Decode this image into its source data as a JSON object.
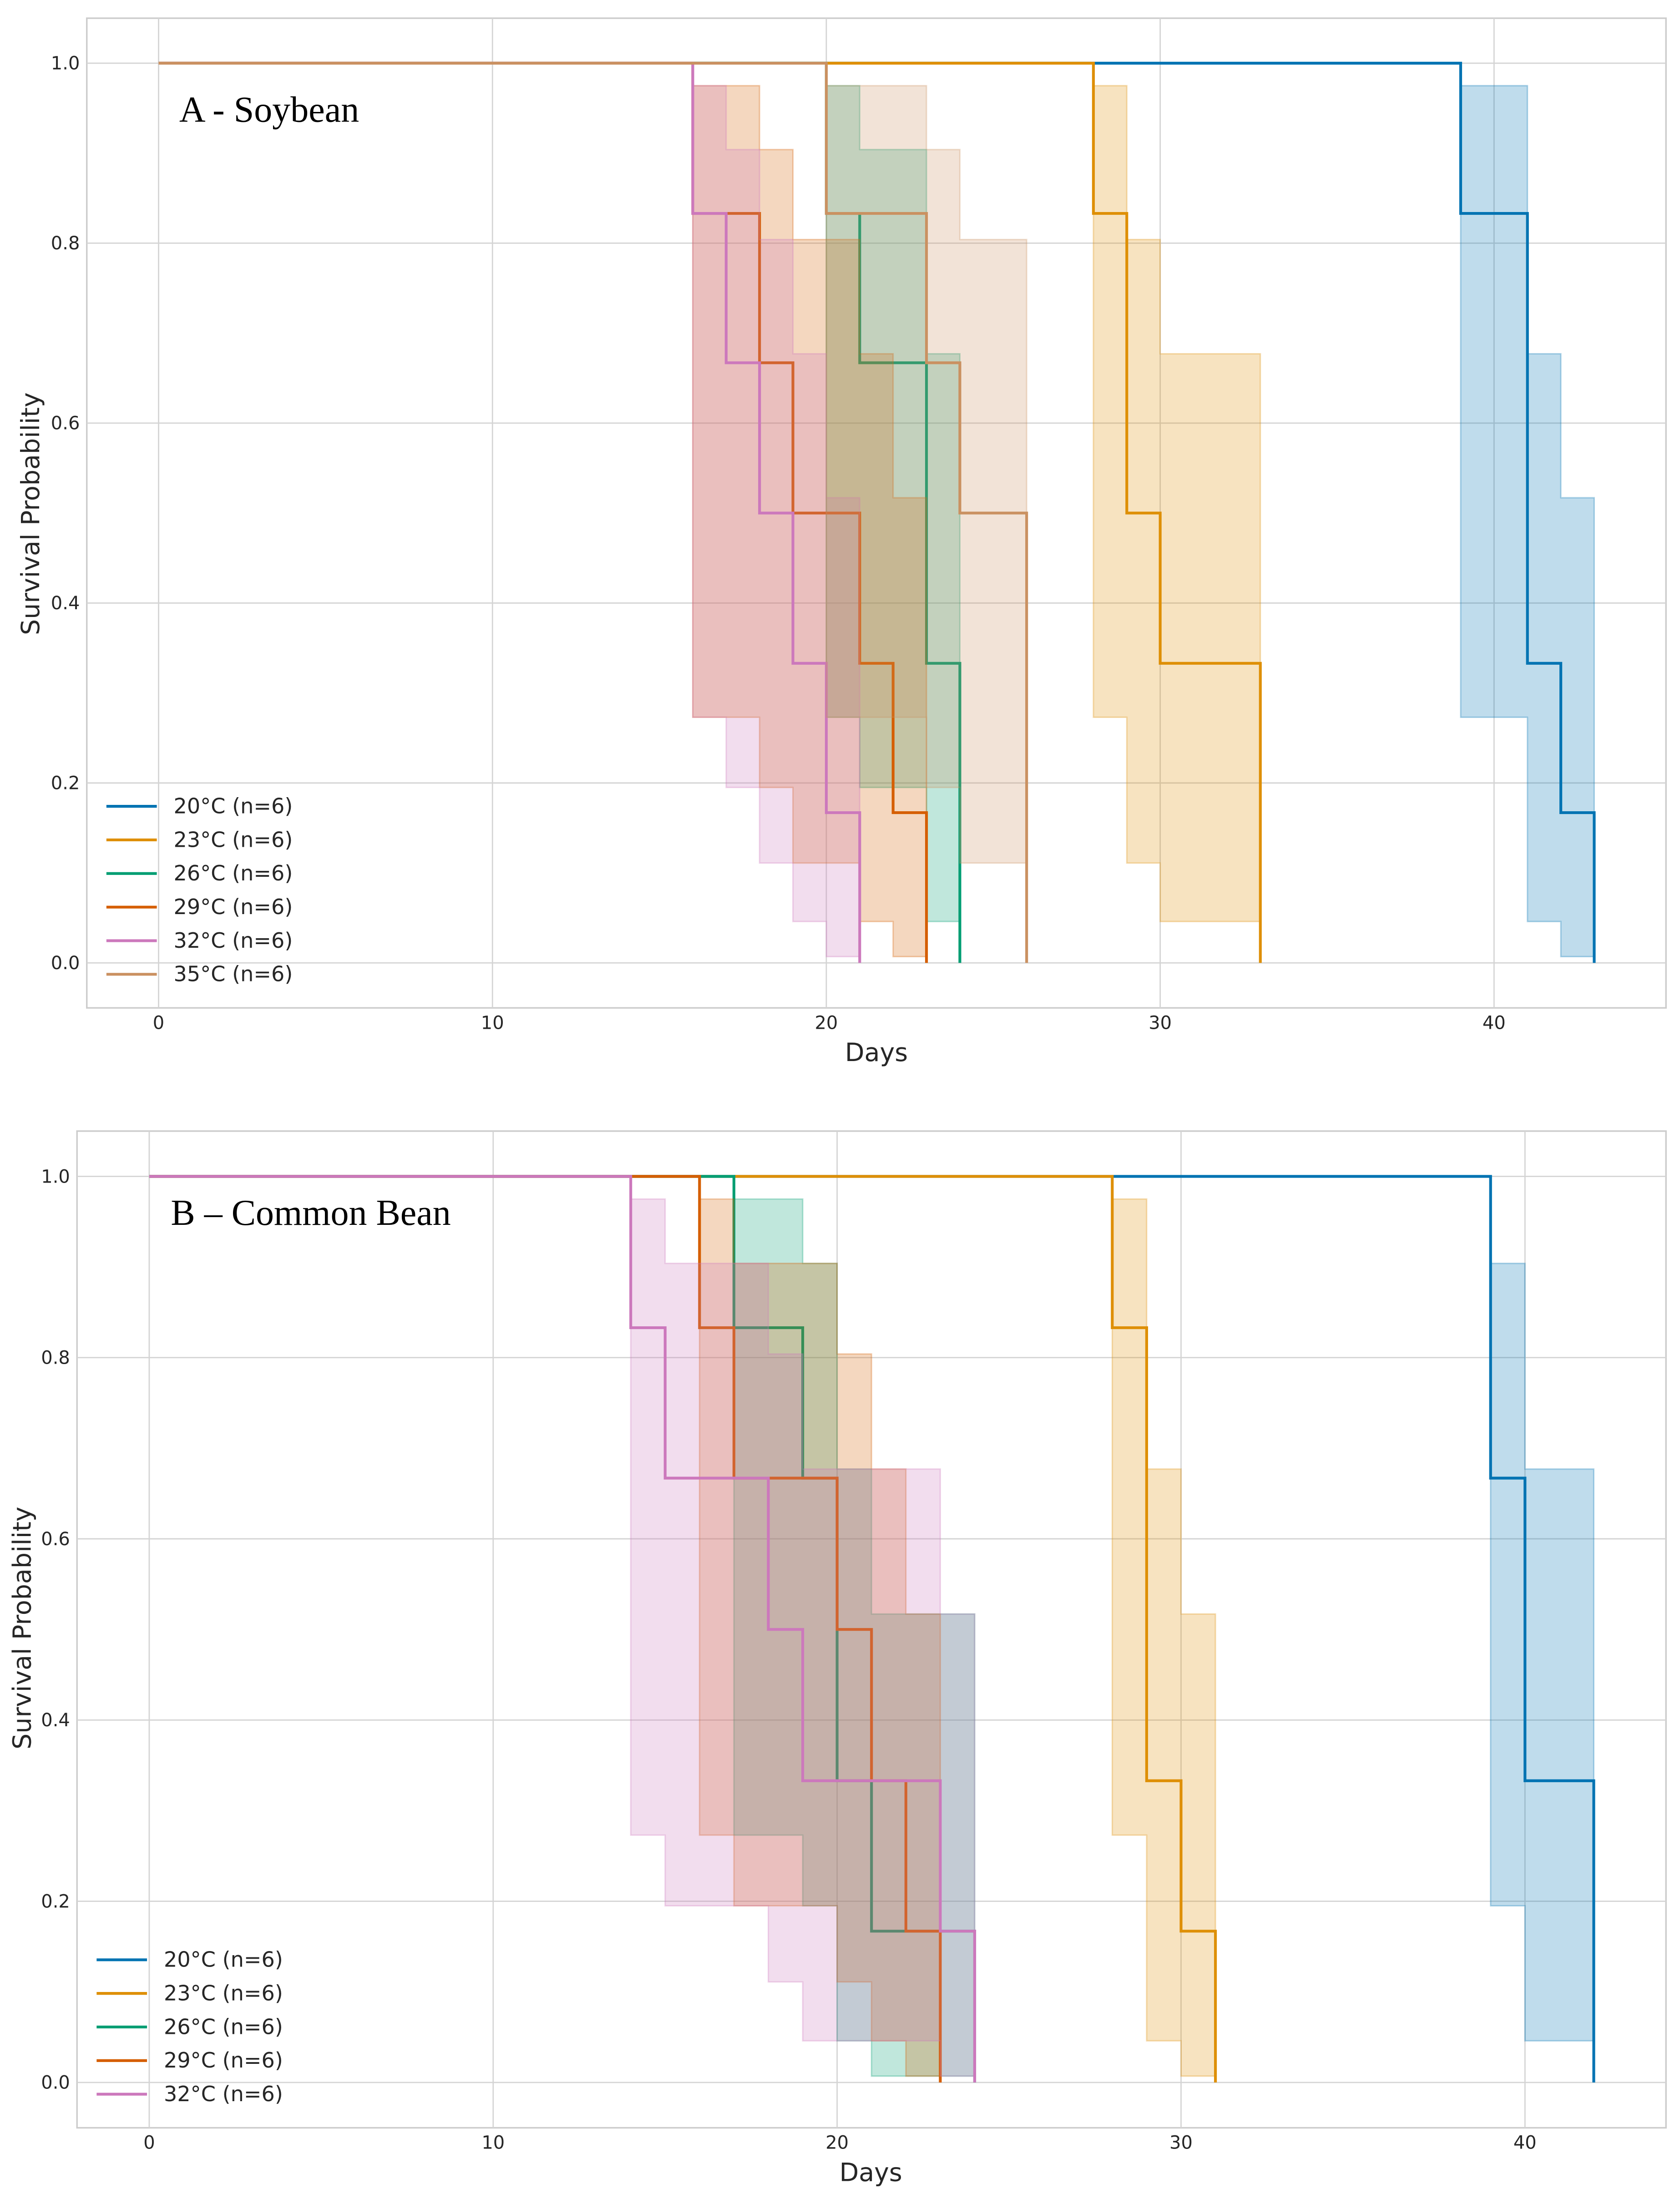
{
  "chart_data": [
    {
      "type": "line",
      "title": "A - Soybean",
      "xlabel": "Days",
      "ylabel": "Survival Probability",
      "xlim": [
        -2.15,
        45.15
      ],
      "ylim": [
        -0.05,
        1.05
      ],
      "xticks": [
        0,
        10,
        20,
        30,
        40
      ],
      "xtick_labels": [
        "0",
        "10",
        "20",
        "30",
        "40"
      ],
      "yticks": [
        0.0,
        0.2,
        0.4,
        0.6,
        0.8,
        1.0
      ],
      "ytick_labels": [
        "0.0",
        "0.2",
        "0.4",
        "0.6",
        "0.8",
        "1.0"
      ],
      "grid": true,
      "legend_position": "lower-left",
      "series": [
        {
          "name": "20°C (n=6)",
          "color": "#0173B2",
          "times": [
            0,
            39,
            41,
            42,
            43
          ],
          "survival": [
            1.0,
            0.833,
            0.333,
            0.167,
            0.0
          ],
          "ci_lower": [
            1.0,
            0.273,
            0.046,
            0.007,
            null
          ],
          "ci_upper": [
            1.0,
            0.975,
            0.677,
            0.517,
            null
          ]
        },
        {
          "name": "23°C (n=6)",
          "color": "#DE8F05",
          "times": [
            0,
            28,
            29,
            30,
            33
          ],
          "survival": [
            1.0,
            0.833,
            0.5,
            0.333,
            0.0
          ],
          "ci_lower": [
            1.0,
            0.273,
            0.111,
            0.046,
            null
          ],
          "ci_upper": [
            1.0,
            0.975,
            0.804,
            0.677,
            null
          ]
        },
        {
          "name": "26°C (n=6)",
          "color": "#029E73",
          "times": [
            0,
            20,
            21,
            23,
            24
          ],
          "survival": [
            1.0,
            0.833,
            0.667,
            0.333,
            0.0
          ],
          "ci_lower": [
            1.0,
            0.273,
            0.195,
            0.046,
            null
          ],
          "ci_upper": [
            1.0,
            0.975,
            0.904,
            0.677,
            null
          ]
        },
        {
          "name": "29°C (n=6)",
          "color": "#D55E00",
          "times": [
            0,
            16,
            18,
            19,
            21,
            22,
            23
          ],
          "survival": [
            1.0,
            0.833,
            0.667,
            0.5,
            0.333,
            0.167,
            0.0
          ],
          "ci_lower": [
            1.0,
            0.273,
            0.195,
            0.111,
            0.046,
            0.007,
            null
          ],
          "ci_upper": [
            1.0,
            0.975,
            0.904,
            0.804,
            0.677,
            0.517,
            null
          ]
        },
        {
          "name": "32°C (n=6)",
          "color": "#CC78BC",
          "times": [
            0,
            16,
            17,
            18,
            19,
            20,
            21
          ],
          "survival": [
            1.0,
            0.833,
            0.667,
            0.5,
            0.333,
            0.167,
            0.0
          ],
          "ci_lower": [
            1.0,
            0.273,
            0.195,
            0.111,
            0.046,
            0.007,
            null
          ],
          "ci_upper": [
            1.0,
            0.975,
            0.904,
            0.804,
            0.677,
            0.517,
            null
          ]
        },
        {
          "name": "35°C (n=6)",
          "color": "#CA9161",
          "times": [
            0,
            20,
            23,
            24,
            26
          ],
          "survival": [
            1.0,
            0.833,
            0.667,
            0.5,
            0.0
          ],
          "ci_lower": [
            1.0,
            0.273,
            0.195,
            0.111,
            null
          ],
          "ci_upper": [
            1.0,
            0.975,
            0.904,
            0.804,
            null
          ]
        }
      ]
    },
    {
      "type": "line",
      "title": "B – Common Bean",
      "xlabel": "Days",
      "ylabel": "Survival Probability",
      "xlim": [
        -2.1,
        44.1
      ],
      "ylim": [
        -0.05,
        1.05
      ],
      "xticks": [
        0,
        10,
        20,
        30,
        40
      ],
      "xtick_labels": [
        "0",
        "10",
        "20",
        "30",
        "40"
      ],
      "yticks": [
        0.0,
        0.2,
        0.4,
        0.6,
        0.8,
        1.0
      ],
      "ytick_labels": [
        "0.0",
        "0.2",
        "0.4",
        "0.6",
        "0.8",
        "1.0"
      ],
      "grid": true,
      "legend_position": "lower-left",
      "series": [
        {
          "name": "20°C (n=6)",
          "color": "#0173B2",
          "times": [
            0,
            39,
            40,
            42
          ],
          "survival": [
            1.0,
            0.667,
            0.333,
            0.0
          ],
          "ci_lower": [
            1.0,
            0.195,
            0.046,
            null
          ],
          "ci_upper": [
            1.0,
            0.904,
            0.677,
            null
          ]
        },
        {
          "name": "23°C (n=6)",
          "color": "#DE8F05",
          "times": [
            0,
            28,
            29,
            30,
            31
          ],
          "survival": [
            1.0,
            0.833,
            0.333,
            0.167,
            0.0
          ],
          "ci_lower": [
            1.0,
            0.273,
            0.046,
            0.007,
            null
          ],
          "ci_upper": [
            1.0,
            0.975,
            0.677,
            0.517,
            null
          ]
        },
        {
          "name": "26°C (n=6)",
          "color": "#029E73",
          "times": [
            0,
            17,
            19,
            20,
            21,
            24
          ],
          "survival": [
            1.0,
            0.833,
            0.667,
            0.333,
            0.167,
            0.0
          ],
          "ci_lower": [
            1.0,
            0.273,
            0.195,
            0.046,
            0.007,
            null
          ],
          "ci_upper": [
            1.0,
            0.975,
            0.904,
            0.677,
            0.517,
            null
          ]
        },
        {
          "name": "29°C (n=6)",
          "color": "#D55E00",
          "times": [
            0,
            16,
            17,
            20,
            21,
            22,
            23
          ],
          "survival": [
            1.0,
            0.833,
            0.667,
            0.5,
            0.333,
            0.167,
            0.0
          ],
          "ci_lower": [
            1.0,
            0.273,
            0.195,
            0.111,
            0.046,
            0.007,
            null
          ],
          "ci_upper": [
            1.0,
            0.975,
            0.904,
            0.804,
            0.677,
            0.517,
            null
          ]
        },
        {
          "name": "32°C (n=6)",
          "color": "#CC78BC",
          "times": [
            0,
            14,
            15,
            18,
            19,
            23,
            24
          ],
          "survival": [
            1.0,
            0.833,
            0.667,
            0.5,
            0.333,
            0.167,
            0.0
          ],
          "ci_lower": [
            1.0,
            0.273,
            0.195,
            0.111,
            0.046,
            0.007,
            null
          ],
          "ci_upper": [
            1.0,
            0.975,
            0.904,
            0.804,
            0.677,
            0.517,
            null
          ]
        }
      ]
    }
  ]
}
